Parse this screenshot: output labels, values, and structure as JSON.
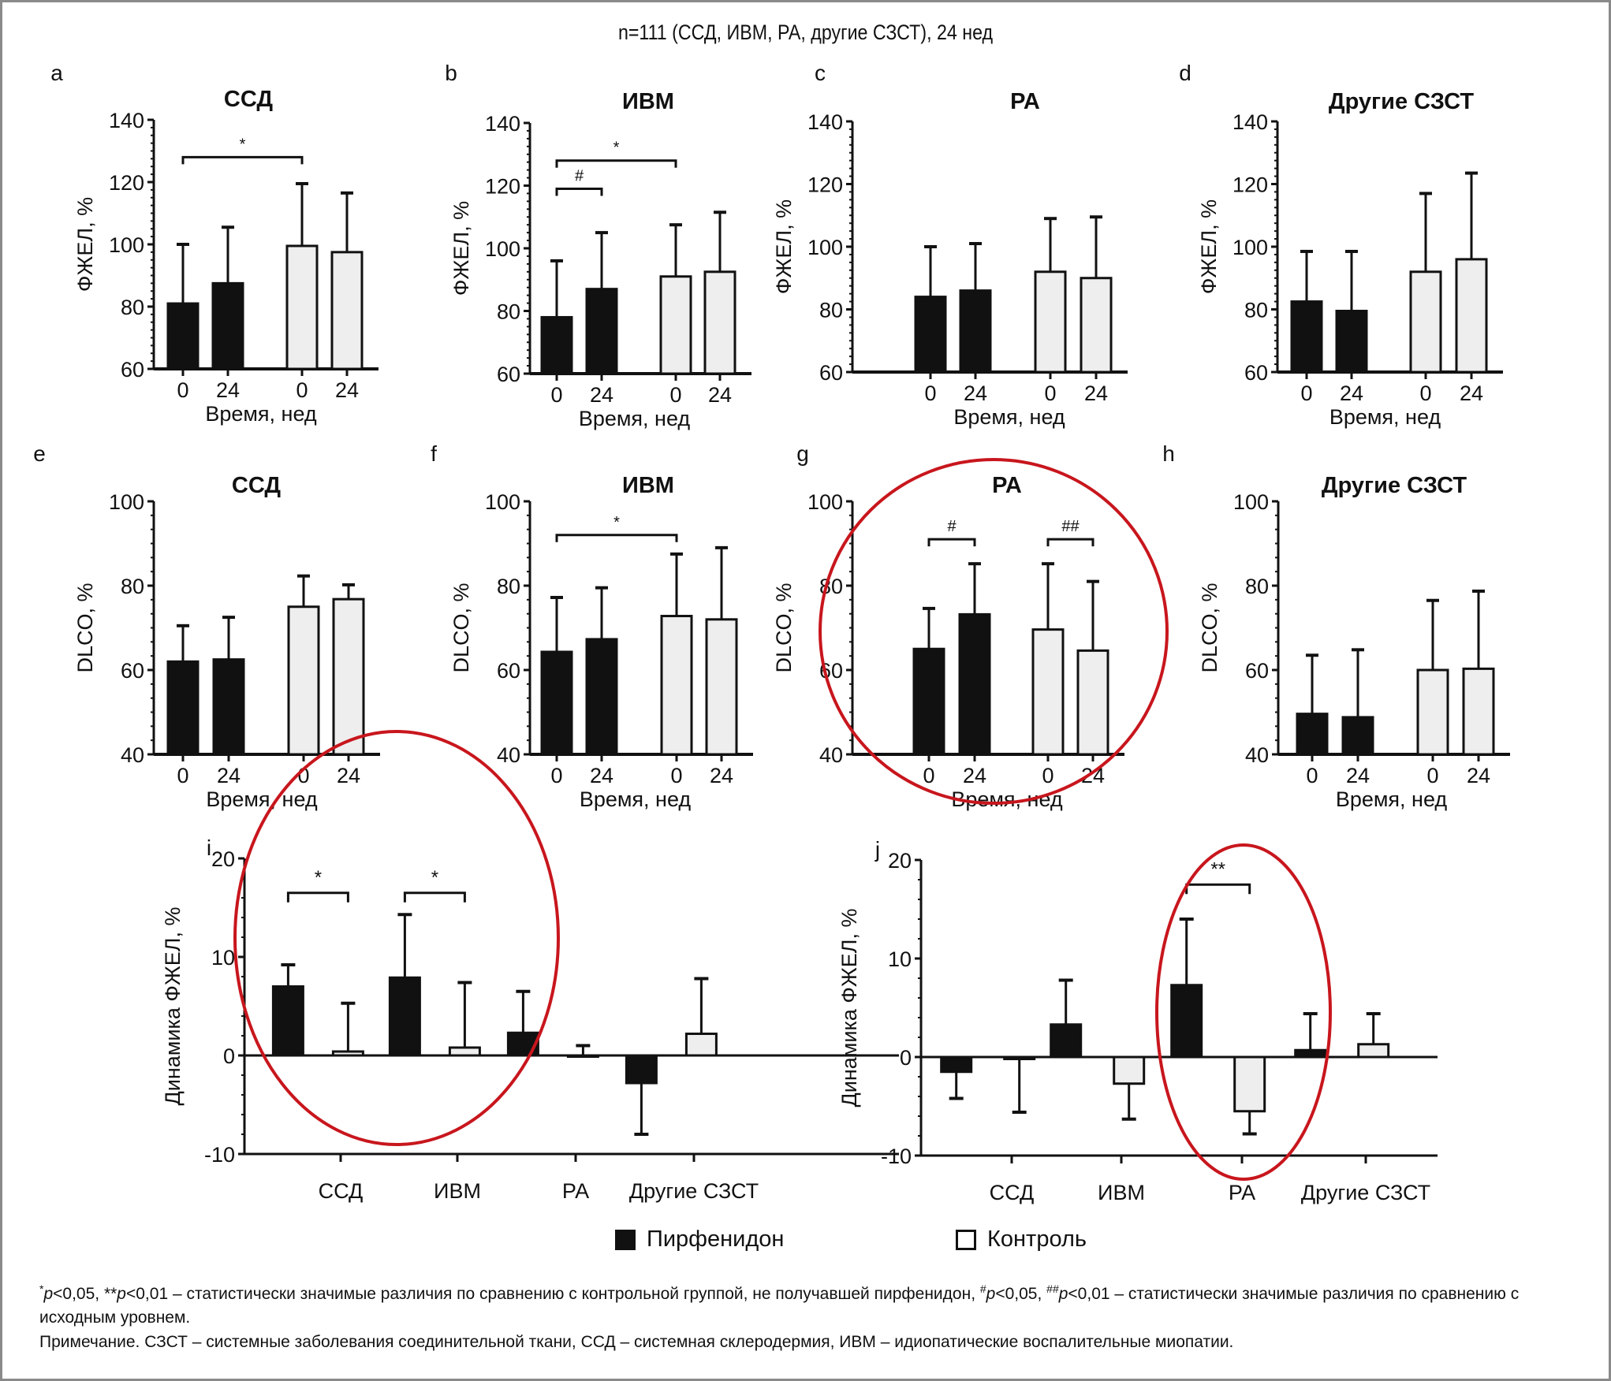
{
  "figure_title": "n=111 (ССД, ИВМ, РА, другие СЗСТ), 24 нед",
  "colors": {
    "pirfenidone": "#111111",
    "control_fill": "#eeeeee",
    "control_edge": "#111111",
    "highlight": "#c8161d",
    "border": "#8a8a8a"
  },
  "legend": [
    {
      "label": "Пирфенидон",
      "style": "filled-black"
    },
    {
      "label": "Контроль",
      "style": "open"
    }
  ],
  "footnotes": {
    "line1_parts": [
      "*",
      "p",
      "<0,05, **",
      "p",
      "<0,01 – статистически значимые различия по сравнению с контрольной группой, не получавшей пирфенидон, ",
      "#",
      "p",
      "<0,05, ",
      "##",
      "p",
      "<0,01 – статистически значимые различия по сравнению с исходным уровнем."
    ],
    "line2": "Примечание. СЗСТ – системные заболевания соединительной ткани, ССД – системная склеродермия, ИВМ – идиопатические воспалительные миопатии."
  },
  "chart_data": [
    {
      "id": "a",
      "type": "bar",
      "title": "ССД",
      "ylabel": "ФЖЕЛ, %",
      "xlabel": "Время, нед",
      "ylim": [
        60,
        140
      ],
      "yticks": [
        60,
        80,
        100,
        120,
        140
      ],
      "categories": [
        "0",
        "24",
        "0",
        "24"
      ],
      "groups": [
        "Пирфенидон",
        "Пирфенидон",
        "Контроль",
        "Контроль"
      ],
      "values": [
        81,
        87.5,
        99.5,
        97.5
      ],
      "errors_upper": [
        100,
        105.5,
        119.5,
        116.5
      ],
      "annotations": [
        {
          "from": 0,
          "to": 2,
          "label": "*",
          "level": 128
        }
      ]
    },
    {
      "id": "b",
      "type": "bar",
      "title": "ИВМ",
      "ylabel": "ФЖЕЛ, %",
      "xlabel": "Время, нед",
      "ylim": [
        60,
        140
      ],
      "yticks": [
        60,
        80,
        100,
        120,
        140
      ],
      "categories": [
        "0",
        "24",
        "0",
        "24"
      ],
      "groups": [
        "Пирфенидон",
        "Пирфенидон",
        "Контроль",
        "Контроль"
      ],
      "values": [
        78,
        87,
        91,
        92.5
      ],
      "errors_upper": [
        96,
        105,
        107.5,
        111.5
      ],
      "annotations": [
        {
          "from": 0,
          "to": 1,
          "label": "#",
          "level": 119
        },
        {
          "from": 0,
          "to": 2,
          "label": "*",
          "level": 128
        }
      ]
    },
    {
      "id": "c",
      "type": "bar",
      "title": "РА",
      "ylabel": "ФЖЕЛ, %",
      "xlabel": "Время, нед",
      "ylim": [
        60,
        140
      ],
      "yticks": [
        60,
        80,
        100,
        120,
        140
      ],
      "categories": [
        "0",
        "24",
        "0",
        "24"
      ],
      "groups": [
        "Пирфенидон",
        "Пирфенидон",
        "Контроль",
        "Контроль"
      ],
      "values": [
        84,
        86,
        92,
        90
      ],
      "errors_upper": [
        100,
        101,
        109,
        109.5
      ],
      "annotations": []
    },
    {
      "id": "d",
      "type": "bar",
      "title": "Другие СЗСТ",
      "ylabel": "ФЖЕЛ, %",
      "xlabel": "Время, нед",
      "ylim": [
        60,
        140
      ],
      "yticks": [
        60,
        80,
        100,
        120,
        140
      ],
      "categories": [
        "0",
        "24",
        "0",
        "24"
      ],
      "groups": [
        "Пирфенидон",
        "Пирфенидон",
        "Контроль",
        "Контроль"
      ],
      "values": [
        82.5,
        79.5,
        92,
        96
      ],
      "errors_upper": [
        98.5,
        98.5,
        117,
        123.5
      ],
      "annotations": []
    },
    {
      "id": "e",
      "type": "bar",
      "title": "ССД",
      "ylabel": "DLCO, %",
      "xlabel": "Время, нед",
      "ylim": [
        40,
        100
      ],
      "yticks": [
        40,
        60,
        80,
        100
      ],
      "categories": [
        "0",
        "24",
        "0",
        "24"
      ],
      "groups": [
        "Пирфенидон",
        "Пирфенидон",
        "Контроль",
        "Контроль"
      ],
      "values": [
        62,
        62.5,
        75,
        76.8
      ],
      "errors_upper": [
        70.5,
        72.5,
        82.3,
        80.2
      ],
      "annotations": []
    },
    {
      "id": "f",
      "type": "bar",
      "title": "ИВМ",
      "ylabel": "DLCO, %",
      "xlabel": "Время, нед",
      "ylim": [
        40,
        100
      ],
      "yticks": [
        40,
        60,
        80,
        100
      ],
      "categories": [
        "0",
        "24",
        "0",
        "24"
      ],
      "groups": [
        "Пирфенидон",
        "Пирфенидон",
        "Контроль",
        "Контроль"
      ],
      "values": [
        64.3,
        67.3,
        72.8,
        72
      ],
      "errors_upper": [
        77.2,
        79.5,
        87.5,
        89
      ],
      "annotations": [
        {
          "from": 0,
          "to": 2,
          "label": "*",
          "level": 92
        }
      ]
    },
    {
      "id": "g",
      "type": "bar",
      "title": "РА",
      "ylabel": "DLCO, %",
      "xlabel": "Время, нед",
      "ylim": [
        40,
        100
      ],
      "yticks": [
        40,
        60,
        80,
        100
      ],
      "categories": [
        "0",
        "24",
        "0",
        "24"
      ],
      "groups": [
        "Пирфенидон",
        "Пирфенидон",
        "Контроль",
        "Контроль"
      ],
      "values": [
        65,
        73.2,
        69.6,
        64.6
      ],
      "errors_upper": [
        74.6,
        85.2,
        85.2,
        81
      ],
      "annotations": [
        {
          "from": 0,
          "to": 1,
          "label": "#",
          "level": 91
        },
        {
          "from": 2,
          "to": 3,
          "label": "##",
          "level": 91
        }
      ],
      "highlighted": true
    },
    {
      "id": "h",
      "type": "bar",
      "title": "Другие СЗСТ",
      "ylabel": "DLCO, %",
      "xlabel": "Время, нед",
      "ylim": [
        40,
        100
      ],
      "yticks": [
        40,
        60,
        80,
        100
      ],
      "categories": [
        "0",
        "24",
        "0",
        "24"
      ],
      "groups": [
        "Пирфенидон",
        "Пирфенидон",
        "Контроль",
        "Контроль"
      ],
      "values": [
        49.6,
        48.8,
        60,
        60.3
      ],
      "errors_upper": [
        63.5,
        64.8,
        76.5,
        78.7
      ],
      "annotations": []
    },
    {
      "id": "i",
      "type": "bar",
      "title": "",
      "ylabel": "Динамика ФЖЕЛ, %",
      "xlabel": "",
      "ylim": [
        -10,
        20
      ],
      "yticks": [
        -10,
        0,
        10,
        20
      ],
      "categories": [
        "ССД",
        "ИВМ",
        "РА",
        "Другие СЗСТ"
      ],
      "series": [
        {
          "name": "Пирфенидон",
          "values": [
            7,
            7.9,
            2.3,
            -2.8
          ],
          "errors": [
            9.2,
            14.3,
            6.5,
            -8
          ]
        },
        {
          "name": "Контроль",
          "values": [
            0.4,
            0.8,
            0,
            2.2
          ],
          "errors": [
            5.3,
            7.4,
            1,
            7.8
          ]
        }
      ],
      "annotations": [
        {
          "category": 0,
          "label": "*",
          "level": 16.5
        },
        {
          "category": 1,
          "label": "*",
          "level": 16.5
        }
      ],
      "highlighted_categories": [
        0,
        1
      ]
    },
    {
      "id": "j",
      "type": "bar",
      "title": "",
      "ylabel": "Динамика ФЖЕЛ, %",
      "xlabel": "",
      "ylim": [
        -10,
        20
      ],
      "yticks": [
        -10,
        0,
        10,
        20
      ],
      "categories": [
        "ССД",
        "ИВМ",
        "РА",
        "Другие СЗСТ"
      ],
      "series": [
        {
          "name": "Пирфенидон",
          "values": [
            -1.5,
            3.3,
            7.3,
            0.7
          ],
          "errors": [
            -4.2,
            7.8,
            14,
            4.4
          ]
        },
        {
          "name": "Контроль",
          "values": [
            -0.2,
            -2.7,
            -5.5,
            1.3
          ],
          "errors": [
            -5.6,
            -6.3,
            -7.8,
            4.4
          ]
        }
      ],
      "annotations": [
        {
          "category": 2,
          "label": "**",
          "level": 17.5
        }
      ],
      "highlighted_categories": [
        2
      ]
    }
  ]
}
